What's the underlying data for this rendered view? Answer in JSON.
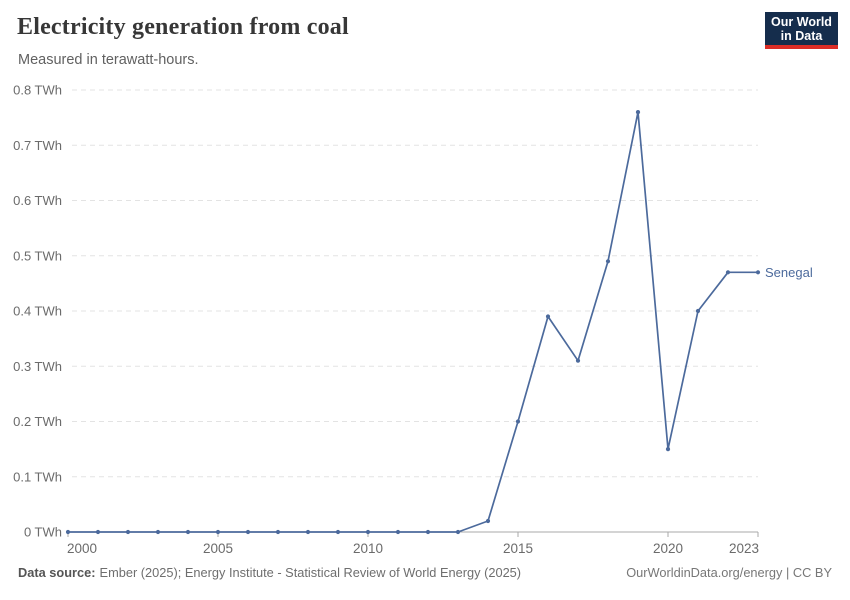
{
  "header": {
    "title": "Electricity generation from coal",
    "subtitle": "Measured in terawatt-hours."
  },
  "logo": {
    "line1": "Our World",
    "line2": "in Data",
    "bg_color": "#152d4c",
    "accent_color": "#dc2d26"
  },
  "footer": {
    "source_label": "Data source:",
    "source_text": "Ember (2025); Energy Institute - Statistical Review of World Energy (2025)",
    "credit": "OurWorldinData.org/energy | CC BY"
  },
  "chart_data": {
    "type": "line",
    "title": "Electricity generation from coal",
    "subtitle": "Measured in terawatt-hours.",
    "unit": "TWh",
    "x": [
      2000,
      2001,
      2002,
      2003,
      2004,
      2005,
      2006,
      2007,
      2008,
      2009,
      2010,
      2011,
      2012,
      2013,
      2014,
      2015,
      2016,
      2017,
      2018,
      2019,
      2020,
      2021,
      2022,
      2023
    ],
    "series": [
      {
        "name": "Senegal",
        "color": "#4C6A9C",
        "values": [
          0,
          0,
          0,
          0,
          0,
          0,
          0,
          0,
          0,
          0,
          0,
          0,
          0,
          0,
          0.02,
          0.2,
          0.39,
          0.31,
          0.49,
          0.76,
          0.15,
          0.4,
          0.47,
          0.47
        ]
      }
    ],
    "ylim": [
      0,
      0.8
    ],
    "yticks": [
      {
        "value": 0,
        "label": "0 TWh"
      },
      {
        "value": 0.1,
        "label": "0.1 TWh"
      },
      {
        "value": 0.2,
        "label": "0.2 TWh"
      },
      {
        "value": 0.3,
        "label": "0.3 TWh"
      },
      {
        "value": 0.4,
        "label": "0.4 TWh"
      },
      {
        "value": 0.5,
        "label": "0.5 TWh"
      },
      {
        "value": 0.6,
        "label": "0.6 TWh"
      },
      {
        "value": 0.7,
        "label": "0.7 TWh"
      },
      {
        "value": 0.8,
        "label": "0.8 TWh"
      }
    ],
    "xticks": [
      2000,
      2005,
      2010,
      2015,
      2020,
      2023
    ],
    "grid": "dashed-horizontal",
    "legend_position": "end-of-line",
    "colors": {
      "line": "#4C6A9C",
      "grid": "#e3e3e3",
      "axis": "#a8a8a8",
      "tick_text": "#6b6b6b"
    }
  }
}
